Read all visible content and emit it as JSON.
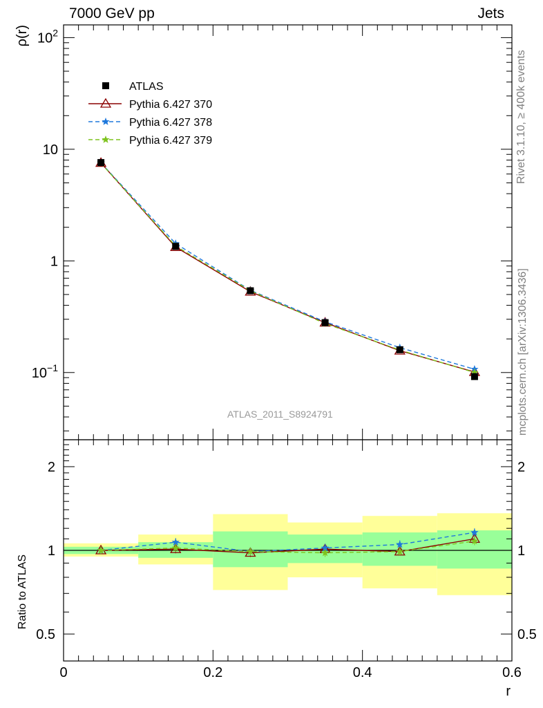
{
  "header": {
    "left": "7000 GeV pp",
    "right": "Jets"
  },
  "side_labels": {
    "rivet": "Rivet 3.1.10, ≥ 400k events",
    "mcplots": "mcplots.cern.ch [arXiv:1306.3436]"
  },
  "watermark": "ATLAS_2011_S8924791",
  "colors": {
    "atlas": "#000000",
    "p370": "#8b0000",
    "p378": "#1e78dc",
    "p379": "#7ec31e",
    "band_inner": "#99ff99",
    "band_outer": "#ffff99"
  },
  "chart_data": [
    {
      "id": "main",
      "type": "line",
      "title": "",
      "xlabel": "",
      "ylabel": "ρ(r)",
      "yscale": "log",
      "xlim": [
        0,
        0.6
      ],
      "ylim": [
        0.025,
        130
      ],
      "yticks": [
        {
          "value": 0.1,
          "base": "10",
          "exp": "−1"
        },
        {
          "value": 1,
          "base": "1",
          "exp": ""
        },
        {
          "value": 10,
          "base": "10",
          "exp": ""
        },
        {
          "value": 100,
          "base": "10",
          "exp": "2"
        }
      ],
      "x": [
        0.05,
        0.15,
        0.25,
        0.35,
        0.45,
        0.55
      ],
      "series": [
        {
          "name": "ATLAS",
          "key": "atlas",
          "style": "data",
          "marker": "square",
          "values": [
            7.6,
            1.35,
            0.54,
            0.28,
            0.16,
            0.092
          ]
        },
        {
          "name": "Pythia 6.427 370",
          "key": "p370",
          "style": "solid",
          "marker": "triangle-open",
          "values": [
            7.55,
            1.33,
            0.53,
            0.28,
            0.157,
            0.101
          ]
        },
        {
          "name": "Pythia 6.427 378",
          "key": "p378",
          "style": "dashed",
          "marker": "star",
          "values": [
            7.55,
            1.43,
            0.545,
            0.285,
            0.167,
            0.107
          ]
        },
        {
          "name": "Pythia 6.427 379",
          "key": "p379",
          "style": "dashed",
          "marker": "star",
          "values": [
            7.5,
            1.36,
            0.54,
            0.275,
            0.159,
            0.1
          ]
        }
      ],
      "legend_position": "top-left"
    },
    {
      "id": "ratio",
      "type": "line",
      "xlabel": "r",
      "ylabel": "Ratio to ATLAS",
      "yscale": "log",
      "xlim": [
        0,
        0.6
      ],
      "ylim": [
        0.4,
        2.5
      ],
      "yticks": [
        {
          "value": 0.5,
          "label": "0.5"
        },
        {
          "value": 1,
          "label": "1"
        },
        {
          "value": 2,
          "label": "2"
        }
      ],
      "xticks": [
        {
          "value": 0,
          "label": "0"
        },
        {
          "value": 0.2,
          "label": "0.2"
        },
        {
          "value": 0.4,
          "label": "0.4"
        },
        {
          "value": 0.6,
          "label": "0.6"
        }
      ],
      "bins": [
        [
          0.0,
          0.1
        ],
        [
          0.1,
          0.2
        ],
        [
          0.2,
          0.3
        ],
        [
          0.3,
          0.4
        ],
        [
          0.4,
          0.5
        ],
        [
          0.5,
          0.6
        ]
      ],
      "band_inner": [
        [
          0.97,
          1.03
        ],
        [
          0.94,
          1.07
        ],
        [
          0.87,
          1.17
        ],
        [
          0.9,
          1.14
        ],
        [
          0.88,
          1.16
        ],
        [
          0.86,
          1.18
        ]
      ],
      "band_outer": [
        [
          0.95,
          1.06
        ],
        [
          0.89,
          1.14
        ],
        [
          0.72,
          1.35
        ],
        [
          0.8,
          1.26
        ],
        [
          0.73,
          1.33
        ],
        [
          0.69,
          1.36
        ]
      ],
      "x": [
        0.05,
        0.15,
        0.25,
        0.35,
        0.45,
        0.55
      ],
      "series": [
        {
          "name": "Pythia 6.427 370",
          "key": "p370",
          "style": "solid",
          "marker": "triangle-open",
          "values": [
            1.0,
            1.01,
            0.98,
            1.01,
            0.99,
            1.1
          ]
        },
        {
          "name": "Pythia 6.427 378",
          "key": "p378",
          "style": "dashed",
          "marker": "star",
          "values": [
            1.0,
            1.07,
            0.99,
            1.02,
            1.05,
            1.16
          ]
        },
        {
          "name": "Pythia 6.427 379",
          "key": "p379",
          "style": "dashed",
          "marker": "star",
          "values": [
            1.0,
            1.02,
            0.99,
            0.98,
            0.99,
            1.08
          ]
        }
      ]
    }
  ]
}
